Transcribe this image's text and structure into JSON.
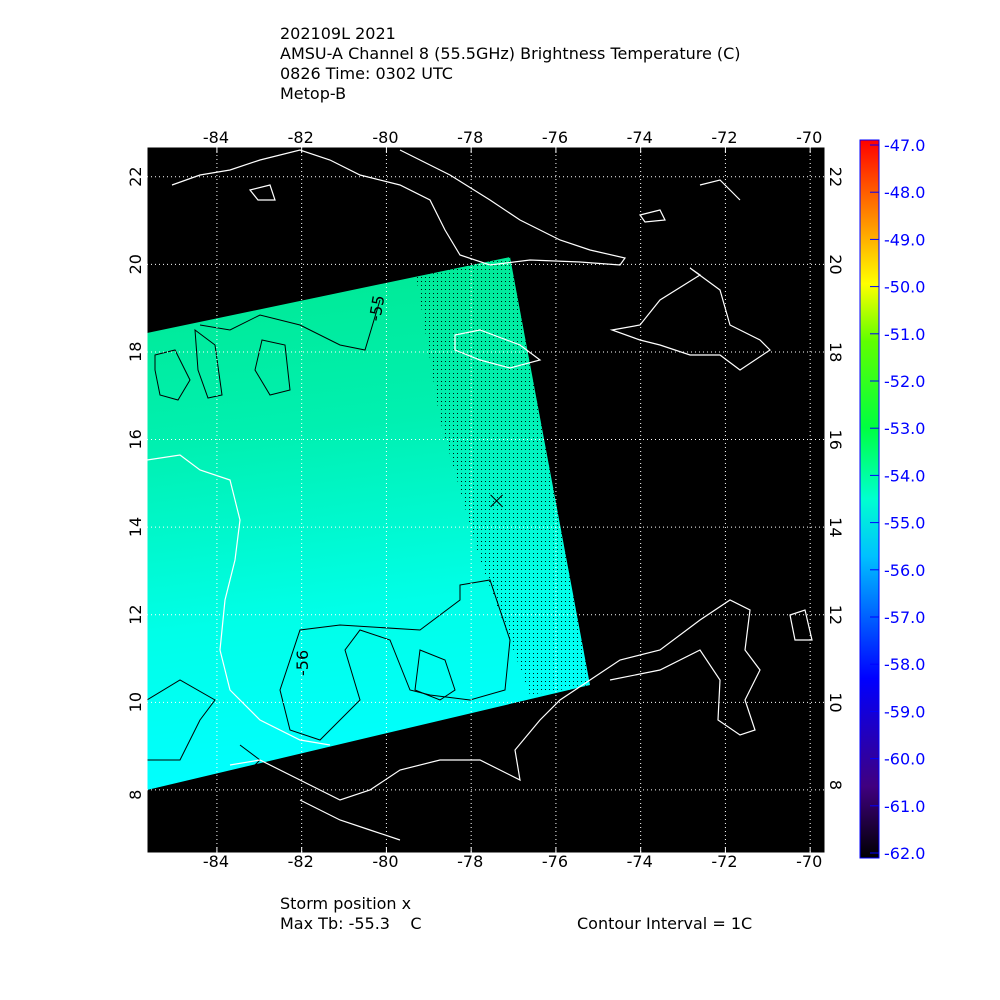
{
  "title": {
    "line1": "202109L 2021",
    "line2": "AMSU-A Channel 8 (55.5GHz) Brightness Temperature (C)",
    "line3": "0826 Time: 0302 UTC",
    "line4": "Metop-B"
  },
  "footer": {
    "storm_position": "Storm position x",
    "max_tb": "Max Tb: -55.3    C",
    "contour_interval": "Contour Interval = 1C"
  },
  "chart_data": {
    "type": "heatmap",
    "xlim": [
      -85.65,
      -69.65
    ],
    "ylim": [
      6.56,
      22.68
    ],
    "x_ticks": [
      "-84",
      "-82",
      "-80",
      "-78",
      "-76",
      "-74",
      "-72",
      "-70"
    ],
    "x_tick_values": [
      -84,
      -82,
      -80,
      -78,
      -76,
      -74,
      -72,
      -70
    ],
    "y_ticks": [
      "8",
      "10",
      "12",
      "14",
      "16",
      "18",
      "20",
      "22"
    ],
    "y_tick_values": [
      8,
      10,
      12,
      14,
      16,
      18,
      20,
      22
    ],
    "grid": true,
    "colorbar": {
      "range": [
        -62.0,
        -47.0
      ],
      "ticks": [
        "-47.0",
        "-48.0",
        "-49.0",
        "-50.0",
        "-51.0",
        "-52.0",
        "-53.0",
        "-54.0",
        "-55.0",
        "-56.0",
        "-57.0",
        "-58.0",
        "-59.0",
        "-60.0",
        "-61.0",
        "-62.0"
      ],
      "label_color": "#0000ff",
      "colors": [
        "#000000",
        "#400080",
        "#0000ff",
        "#00a0ff",
        "#00ffff",
        "#00ff80",
        "#00ff00",
        "#ffff00",
        "#ff8000",
        "#ff0000"
      ]
    },
    "contour_labels": [
      "-55",
      "-56"
    ],
    "storm_position": {
      "lon": -77.4,
      "lat": 14.6
    },
    "swath_colors": {
      "north": "#00e890",
      "south": "#00ffff"
    }
  }
}
